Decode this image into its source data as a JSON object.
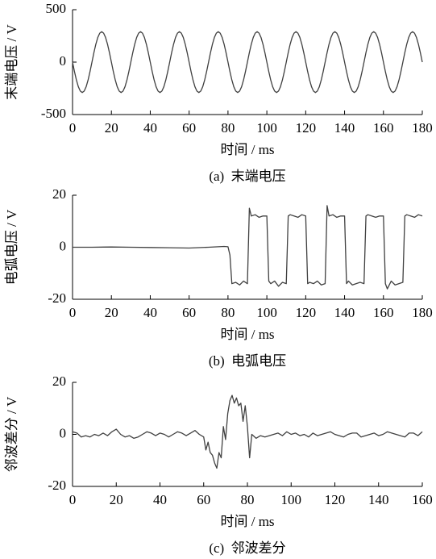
{
  "chart_data": [
    {
      "type": "line",
      "ylabel": "末端电压 / V",
      "xlabel": "时间 / ms",
      "caption": "(a)  末端电压",
      "color": "#404040",
      "xlim": [
        0,
        180
      ],
      "xticks": [
        0,
        20,
        40,
        60,
        80,
        100,
        120,
        140,
        160,
        180
      ],
      "ylim": [
        -500,
        500
      ],
      "yticks": [
        -500,
        0,
        500
      ],
      "x": [
        0,
        1,
        2,
        3,
        4,
        5,
        6,
        7,
        8,
        9,
        10,
        11,
        12,
        13,
        14,
        15,
        16,
        17,
        18,
        19,
        20,
        21,
        22,
        23,
        24,
        25,
        26,
        27,
        28,
        29,
        30,
        31,
        32,
        33,
        34,
        35,
        36,
        37,
        38,
        39,
        40,
        41,
        42,
        43,
        44,
        45,
        46,
        47,
        48,
        49,
        50,
        51,
        52,
        53,
        54,
        55,
        56,
        57,
        58,
        59,
        60,
        61,
        62,
        63,
        64,
        65,
        66,
        67,
        68,
        69,
        70,
        71,
        72,
        73,
        74,
        75,
        76,
        77,
        78,
        79,
        80,
        81,
        82,
        83,
        84,
        85,
        86,
        87,
        88,
        89,
        90,
        91,
        92,
        93,
        94,
        95,
        96,
        97,
        98,
        99,
        100,
        101,
        102,
        103,
        104,
        105,
        106,
        107,
        108,
        109,
        110,
        111,
        112,
        113,
        114,
        115,
        116,
        117,
        118,
        119,
        120,
        121,
        122,
        123,
        124,
        125,
        126,
        127,
        128,
        129,
        130,
        131,
        132,
        133,
        134,
        135,
        136,
        137,
        138,
        139,
        140,
        141,
        142,
        143,
        144,
        145,
        146,
        147,
        148,
        149,
        150,
        151,
        152,
        153,
        154,
        155,
        156,
        157,
        158,
        159,
        160,
        161,
        162,
        163,
        164,
        165,
        166,
        167,
        168,
        169,
        170,
        171,
        172,
        173,
        174,
        175,
        176,
        177,
        178,
        179,
        180
      ],
      "values": [
        0,
        -90,
        -171,
        -235,
        -276,
        -290,
        -276,
        -235,
        -171,
        -90,
        0,
        90,
        171,
        235,
        276,
        290,
        276,
        235,
        171,
        90,
        0,
        -90,
        -171,
        -235,
        -276,
        -290,
        -276,
        -235,
        -171,
        -90,
        0,
        90,
        171,
        235,
        276,
        290,
        276,
        235,
        171,
        90,
        0,
        -90,
        -171,
        -235,
        -276,
        -290,
        -276,
        -235,
        -171,
        -90,
        0,
        90,
        171,
        235,
        276,
        290,
        276,
        235,
        171,
        90,
        0,
        -90,
        -171,
        -235,
        -276,
        -290,
        -276,
        -235,
        -171,
        -90,
        0,
        90,
        171,
        235,
        276,
        290,
        276,
        235,
        171,
        90,
        0,
        -90,
        -171,
        -235,
        -276,
        -290,
        -276,
        -235,
        -171,
        -90,
        0,
        90,
        171,
        235,
        276,
        290,
        276,
        235,
        171,
        90,
        0,
        -90,
        -171,
        -235,
        -276,
        -290,
        -276,
        -235,
        -171,
        -90,
        0,
        90,
        171,
        235,
        276,
        290,
        276,
        235,
        171,
        90,
        0,
        -90,
        -171,
        -235,
        -276,
        -290,
        -276,
        -235,
        -171,
        -90,
        0,
        90,
        171,
        235,
        276,
        290,
        276,
        235,
        171,
        90,
        0,
        -90,
        -171,
        -235,
        -276,
        -290,
        -276,
        -235,
        -171,
        -90,
        0,
        90,
        171,
        235,
        276,
        290,
        276,
        235,
        171,
        90,
        0,
        -90,
        -171,
        -235,
        -276,
        -290,
        -276,
        -235,
        -171,
        -90,
        0,
        90,
        171,
        235,
        276,
        290,
        276,
        235,
        171,
        90,
        0
      ]
    },
    {
      "type": "line",
      "ylabel": "电弧电压 / V",
      "xlabel": "时间 / ms",
      "caption": "(b)  电弧电压",
      "color": "#404040",
      "xlim": [
        0,
        180
      ],
      "xticks": [
        0,
        20,
        40,
        60,
        80,
        100,
        120,
        140,
        160,
        180
      ],
      "ylim": [
        -20,
        20
      ],
      "yticks": [
        -20,
        0,
        20
      ],
      "x": [
        0,
        10,
        20,
        30,
        40,
        50,
        60,
        70,
        78,
        80,
        81,
        82,
        84,
        86,
        88,
        90,
        91,
        92,
        94,
        96,
        98,
        100,
        101,
        102,
        104,
        106,
        108,
        110,
        111,
        112,
        114,
        116,
        118,
        120,
        121,
        122,
        124,
        126,
        128,
        130,
        131,
        132,
        134,
        136,
        138,
        140,
        141,
        142,
        144,
        146,
        148,
        150,
        151,
        152,
        154,
        156,
        158,
        160,
        161,
        162,
        164,
        166,
        168,
        170,
        171,
        172,
        174,
        176,
        178,
        180
      ],
      "values": [
        0,
        0,
        0.1,
        0,
        -0.1,
        -0.2,
        -0.3,
        0,
        0.3,
        0.2,
        -3,
        -14,
        -13.5,
        -14.5,
        -13,
        -14,
        15,
        12,
        12.5,
        11.5,
        12,
        12,
        -13,
        -14,
        -13,
        -15,
        -13.5,
        -14,
        12,
        12.5,
        12,
        11.5,
        12.5,
        12,
        -14,
        -13.5,
        -14,
        -13,
        -14.5,
        -14,
        16,
        12,
        12.5,
        11.5,
        12,
        12,
        -14,
        -13,
        -14.5,
        -14,
        -13.5,
        -14,
        12,
        12.5,
        12,
        11.5,
        12,
        12,
        -14,
        -16,
        -13,
        -14.5,
        -14,
        -13.5,
        12,
        12.5,
        12,
        11.5,
        12.5,
        12
      ]
    },
    {
      "type": "line",
      "ylabel": "邻波差分 / V",
      "xlabel": "时间 / ms",
      "caption": "(c)  邻波差分",
      "color": "#404040",
      "xlim": [
        0,
        160
      ],
      "xticks": [
        0,
        20,
        40,
        60,
        80,
        100,
        120,
        140,
        160
      ],
      "ylim": [
        -20,
        20
      ],
      "yticks": [
        -20,
        0,
        20
      ],
      "x": [
        0,
        2,
        4,
        6,
        8,
        10,
        12,
        14,
        16,
        18,
        20,
        22,
        24,
        26,
        28,
        30,
        32,
        34,
        36,
        38,
        40,
        42,
        44,
        46,
        48,
        50,
        52,
        54,
        56,
        58,
        60,
        61,
        62,
        63,
        64,
        65,
        66,
        67,
        68,
        69,
        70,
        71,
        72,
        73,
        74,
        75,
        76,
        77,
        78,
        79,
        80,
        81,
        82,
        84,
        86,
        88,
        90,
        92,
        94,
        96,
        98,
        100,
        102,
        104,
        106,
        108,
        110,
        112,
        114,
        116,
        118,
        120,
        122,
        124,
        126,
        128,
        130,
        132,
        134,
        136,
        138,
        140,
        142,
        144,
        146,
        148,
        150,
        152,
        154,
        156,
        158,
        160
      ],
      "values": [
        1,
        0.5,
        -1,
        -0.5,
        -1,
        0,
        -0.5,
        0.5,
        -0.5,
        1,
        2,
        0,
        -1,
        -0.5,
        -1.5,
        -1,
        0,
        1,
        0.5,
        -0.5,
        0.5,
        0,
        -1,
        0,
        1,
        0.5,
        -0.5,
        0.5,
        1.5,
        0,
        -1,
        -6,
        -3,
        -7,
        -8,
        -11,
        -13,
        -7,
        -9,
        3,
        -2,
        8,
        13,
        15,
        12,
        14,
        11,
        12,
        5,
        11,
        3,
        -9,
        0,
        -1.5,
        -0.5,
        -1,
        -0.5,
        0,
        0.5,
        -0.5,
        1,
        0,
        0.5,
        -0.5,
        0,
        -1,
        0.5,
        -0.5,
        0,
        0.5,
        1,
        0,
        -0.5,
        -1,
        0,
        0.5,
        0.5,
        -1,
        -0.5,
        0,
        0.5,
        -0.5,
        0,
        1,
        0.5,
        0,
        -0.5,
        -1,
        0.5,
        0.5,
        -0.5,
        1
      ]
    }
  ]
}
